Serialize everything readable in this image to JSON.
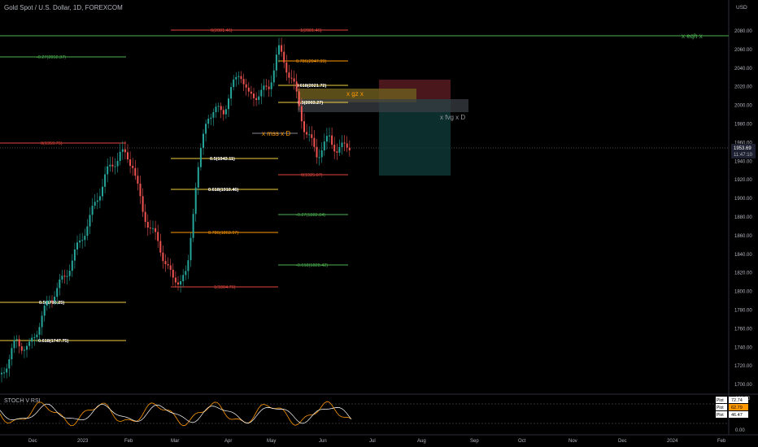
{
  "header": {
    "title": "Gold Spot / U.S. Dollar, 1D, FOREXCOM",
    "currency": "USD"
  },
  "price_axis": {
    "ticks": [
      "2080.00",
      "2060.00",
      "2040.00",
      "2020.00",
      "2000.00",
      "1980.00",
      "1960.00",
      "1940.00",
      "1920.00",
      "1900.00",
      "1880.00",
      "1860.00",
      "1840.00",
      "1820.00",
      "1800.00",
      "1780.00",
      "1760.00",
      "1740.00",
      "1720.00",
      "1700.00"
    ],
    "last_price": "1953.69",
    "countdown": "11:47:10"
  },
  "time_axis": {
    "labels": [
      "Dec",
      "2023",
      "Feb",
      "Mar",
      "Apr",
      "May",
      "Jun",
      "Jul",
      "Aug",
      "Sep",
      "Oct",
      "Nov",
      "Dec",
      "2024",
      "Feb"
    ]
  },
  "annotations": {
    "eqh": "x eqh x",
    "gz": "x gz x",
    "fvg": "x fvg x D",
    "mss": "x mss x D"
  },
  "fib_labels": {
    "top0": "0(2081.46)",
    "top1": "1(2081.46)",
    "ext027": "-0.27(2052.37)",
    "f786a": "0.786(2047.99)",
    "f618a": "0.618(2021.72)",
    "f5a": "0.5(2003.27)",
    "f0mid": "0(1959.75)",
    "f5b": "0.5(1943.11)",
    "f0b": "0(1925.07)",
    "f618b": "0.618(1910.46)",
    "ext027b": "-0.27(1882.84)",
    "f786b": "0.786(1863.97)",
    "ext618": "-0.618(1828.42)",
    "f1b": "1(1804.76)",
    "f5c": "0.5(1786.25)",
    "f618c": "0.618(1747.75)"
  },
  "indicator": {
    "name": "STOCH V RSI",
    "ticks": [
      "100.00",
      "0.00"
    ],
    "plots": [
      {
        "label": "Plot",
        "value": "72.74",
        "color": "#ffffff"
      },
      {
        "label": "Plot",
        "value": "62.79",
        "color": "#ff9800"
      },
      {
        "label": "Plot",
        "value": "46.47",
        "color": "#ffffff"
      }
    ]
  },
  "colors": {
    "up": "#26a69a",
    "down": "#ef5350",
    "fib_red": "#e0463c",
    "fib_yellow": "#f0d040",
    "fib_orange": "#ff9800",
    "fib_green": "#4caf50",
    "text": "#b2b5be"
  }
}
